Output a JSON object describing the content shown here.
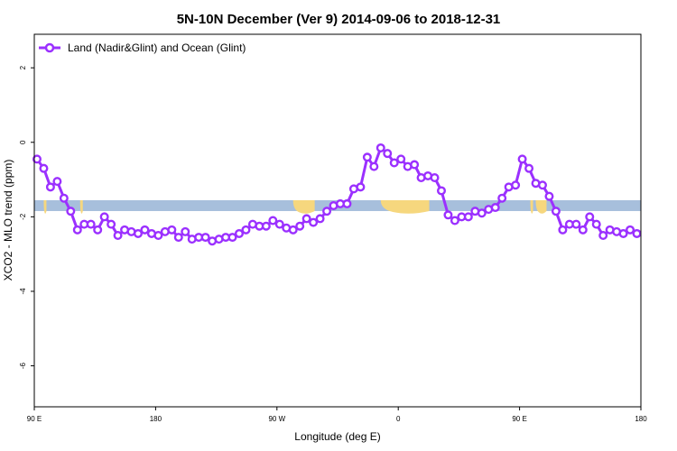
{
  "chart_data": {
    "type": "line",
    "title": "5N-10N December (Ver 9)   2014-09-06 to 2018-12-31",
    "xlabel": "Longitude (deg E)",
    "ylabel": "XCO2 - MLO trend (ppm)",
    "x_ticks": [
      {
        "value": 90,
        "label": "90 E"
      },
      {
        "value": 180,
        "label": "180"
      },
      {
        "value": 270,
        "label": "90 W"
      },
      {
        "value": 360,
        "label": "0"
      },
      {
        "value": 450,
        "label": "90 E"
      },
      {
        "value": 540,
        "label": "180"
      }
    ],
    "y_ticks": [
      {
        "value": 2,
        "label": "2"
      },
      {
        "value": 0,
        "label": "0"
      },
      {
        "value": -2,
        "label": "-2"
      },
      {
        "value": -4,
        "label": "-4"
      },
      {
        "value": -6,
        "label": "-6"
      }
    ],
    "xlim": [
      90,
      540
    ],
    "ylim": [
      -7.1,
      2.9
    ],
    "legend": {
      "position": "top-left",
      "entries": [
        "Land (Nadir&Glint) and Ocean (Glint)"
      ]
    },
    "band": {
      "y_center": -1.7,
      "ocean_color": "#a7bfdc",
      "land_color": "#f6d77e",
      "land_ranges": [
        [
          97,
          99
        ],
        [
          124,
          126
        ],
        [
          282,
          298
        ],
        [
          347,
          383
        ],
        [
          458,
          460
        ],
        [
          462,
          470
        ]
      ]
    },
    "series": [
      {
        "name": "Land (Nadir&Glint) and Ocean (Glint)",
        "color": "#9b30ff",
        "x": [
          92,
          97,
          102,
          107,
          112,
          117,
          122,
          127,
          132,
          137,
          142,
          147,
          152,
          157,
          162,
          167,
          172,
          177,
          182,
          187,
          192,
          197,
          202,
          207,
          212,
          217,
          222,
          227,
          232,
          237,
          242,
          247,
          252,
          257,
          262,
          267,
          272,
          277,
          282,
          287,
          292,
          297,
          302,
          307,
          312,
          317,
          322,
          327,
          332,
          337,
          342,
          347,
          352,
          357,
          362,
          367,
          372,
          377,
          382,
          387,
          392,
          397,
          402,
          407,
          412,
          417,
          422,
          427,
          432,
          437,
          442,
          447,
          452,
          457,
          462,
          467,
          472,
          477,
          482,
          487,
          492,
          497,
          502,
          507,
          512,
          517,
          522,
          527,
          532,
          537
        ],
        "y": [
          -0.45,
          -0.7,
          -1.2,
          -1.05,
          -1.5,
          -1.85,
          -2.35,
          -2.2,
          -2.2,
          -2.35,
          -2.0,
          -2.2,
          -2.5,
          -2.35,
          -2.4,
          -2.45,
          -2.35,
          -2.45,
          -2.5,
          -2.4,
          -2.35,
          -2.55,
          -2.4,
          -2.6,
          -2.55,
          -2.55,
          -2.65,
          -2.6,
          -2.55,
          -2.55,
          -2.45,
          -2.35,
          -2.2,
          -2.25,
          -2.25,
          -2.1,
          -2.2,
          -2.3,
          -2.35,
          -2.25,
          -2.05,
          -2.15,
          -2.05,
          -1.85,
          -1.7,
          -1.65,
          -1.65,
          -1.25,
          -1.2,
          -0.4,
          -0.65,
          -0.15,
          -0.3,
          -0.55,
          -0.45,
          -0.65,
          -0.6,
          -0.95,
          -0.9,
          -0.95,
          -1.3,
          -1.95,
          -2.1,
          -2.0,
          -2.0,
          -1.85,
          -1.9,
          -1.8,
          -1.75,
          -1.5,
          -1.2,
          -1.15,
          -0.45,
          -0.7,
          -1.1,
          -1.15,
          -1.45,
          -1.85,
          -2.35,
          -2.2,
          -2.2,
          -2.35,
          -2.0,
          -2.2,
          -2.5,
          -2.35,
          -2.4,
          -2.45,
          -2.35,
          -2.45
        ]
      }
    ]
  }
}
